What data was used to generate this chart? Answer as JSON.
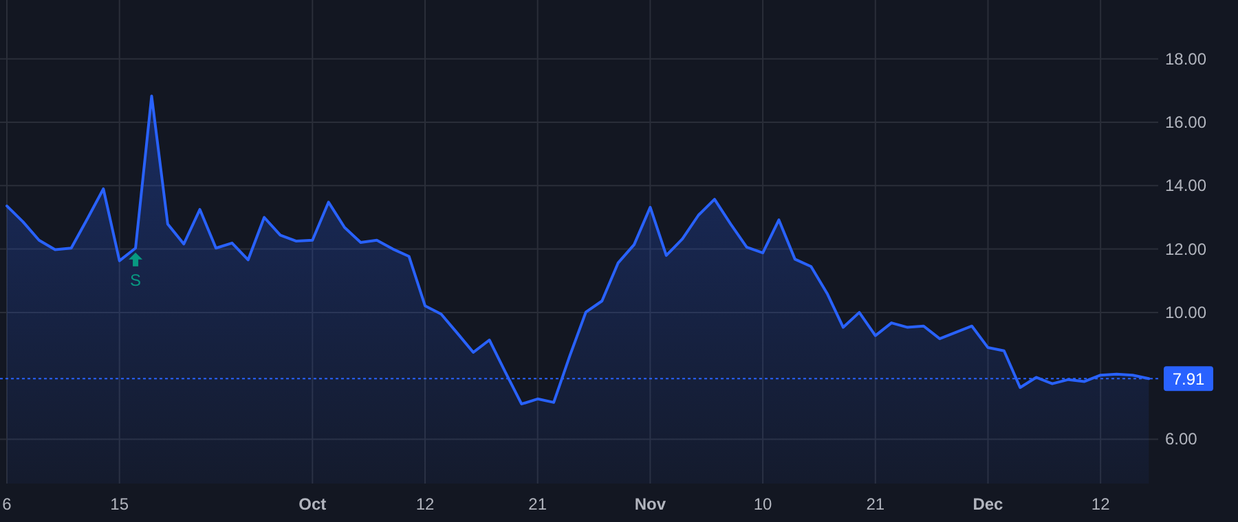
{
  "chart_data": {
    "type": "area",
    "categories": [
      "6",
      null,
      null,
      null,
      null,
      null,
      null,
      "15",
      null,
      null,
      null,
      null,
      null,
      null,
      null,
      null,
      null,
      null,
      null,
      "Oct",
      null,
      null,
      null,
      null,
      null,
      null,
      "12",
      null,
      null,
      null,
      null,
      null,
      null,
      "21",
      null,
      null,
      null,
      null,
      null,
      null,
      "Nov",
      null,
      null,
      null,
      null,
      null,
      null,
      "10",
      null,
      null,
      null,
      null,
      null,
      null,
      "21",
      null,
      null,
      null,
      null,
      null,
      null,
      "Dec",
      null,
      null,
      null,
      null,
      null,
      null,
      "12",
      null,
      null,
      null
    ],
    "series": [
      {
        "color": "#2962ff",
        "values": [
          13.36,
          12.86,
          12.28,
          11.98,
          12.03,
          12.95,
          13.9,
          11.63,
          12.03,
          16.83,
          12.79,
          12.16,
          13.25,
          12.03,
          12.19,
          11.66,
          13.0,
          12.44,
          12.25,
          12.28,
          13.48,
          12.68,
          12.21,
          12.28,
          12.0,
          11.77,
          10.21,
          9.95,
          9.35,
          8.74,
          9.13,
          8.11,
          7.11,
          7.27,
          7.16,
          8.63,
          10.01,
          10.36,
          11.56,
          12.14,
          13.32,
          11.8,
          12.32,
          13.07,
          13.57,
          12.79,
          12.06,
          11.88,
          12.92,
          11.68,
          11.45,
          10.6,
          9.53,
          10.0,
          9.27,
          9.67,
          9.53,
          9.57,
          9.17,
          9.37,
          9.57,
          8.89,
          8.79,
          7.63,
          7.95,
          7.75,
          7.88,
          7.82,
          8.02,
          8.05,
          8.02,
          7.91
        ]
      },
      {
        "type": "scatter",
        "name": "S",
        "color": "#089981",
        "marker": "triangle",
        "values": [
          null,
          null,
          null,
          null,
          null,
          null,
          null,
          null,
          11.67,
          null,
          null,
          null,
          null,
          null,
          null,
          null,
          null,
          null,
          null,
          null,
          null,
          null,
          null,
          null,
          null,
          null,
          null,
          null,
          null,
          null,
          null,
          null,
          null,
          null,
          null,
          null,
          null,
          null,
          null,
          null,
          null,
          null,
          null,
          null,
          null,
          null,
          null,
          null,
          null,
          null,
          null,
          null,
          null,
          null,
          null,
          null,
          null,
          null,
          null,
          null,
          null,
          null,
          null,
          null,
          null,
          null,
          null,
          null,
          null,
          null,
          null,
          null
        ]
      }
    ],
    "ylim": [
      4.6,
      19.86
    ],
    "yticks": [
      {
        "value": 6,
        "label": "6.00"
      },
      {
        "value": 10,
        "label": "10.00"
      },
      {
        "value": 12,
        "label": "12.00"
      },
      {
        "value": 14,
        "label": "14.00"
      },
      {
        "value": 16,
        "label": "16.00"
      },
      {
        "value": 18,
        "label": "18.00"
      }
    ],
    "ref_lines": [
      {
        "axis": "y",
        "value": 7.91,
        "label": "7.91",
        "color": "#2962ff",
        "line_style": "dotted"
      }
    ],
    "grid": true,
    "line_style": "solid",
    "marker": "none"
  }
}
